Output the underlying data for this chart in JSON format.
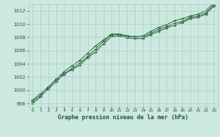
{
  "title": "Graphe pression niveau de la mer (hPa)",
  "bg_color": "#cce8e0",
  "grid_color": "#aaccc4",
  "line_color": "#1a5c2a",
  "marker_color": "#1a5c2a",
  "xlim": [
    -0.5,
    23.5
  ],
  "ylim": [
    997.5,
    1013.0
  ],
  "xticks": [
    0,
    1,
    2,
    3,
    4,
    5,
    6,
    7,
    8,
    9,
    10,
    11,
    12,
    13,
    14,
    15,
    16,
    17,
    18,
    19,
    20,
    21,
    22,
    23
  ],
  "yticks": [
    998,
    1000,
    1002,
    1004,
    1006,
    1008,
    1010,
    1012
  ],
  "series": [
    [
      998.3,
      999.2,
      1000.2,
      1001.3,
      1002.4,
      1003.3,
      1004.1,
      1005.1,
      1006.2,
      1007.4,
      1008.3,
      1008.4,
      1008.1,
      1008.0,
      1008.0,
      1008.6,
      1009.2,
      1009.6,
      1010.1,
      1010.4,
      1011.0,
      1011.2,
      1011.7,
      1012.9
    ],
    [
      998.5,
      999.5,
      1000.5,
      1001.6,
      1002.8,
      1003.7,
      1004.5,
      1005.6,
      1006.7,
      1007.6,
      1008.5,
      1008.5,
      1008.2,
      1008.1,
      1008.2,
      1008.9,
      1009.5,
      1009.9,
      1010.5,
      1010.8,
      1011.2,
      1011.5,
      1012.0,
      1013.2
    ],
    [
      998.0,
      999.0,
      1000.4,
      1001.7,
      1002.5,
      1003.1,
      1003.8,
      1004.9,
      1005.8,
      1007.0,
      1008.1,
      1008.2,
      1007.9,
      1007.8,
      1007.8,
      1008.4,
      1008.9,
      1009.4,
      1009.8,
      1010.2,
      1010.8,
      1011.0,
      1011.5,
      1012.7
    ]
  ]
}
